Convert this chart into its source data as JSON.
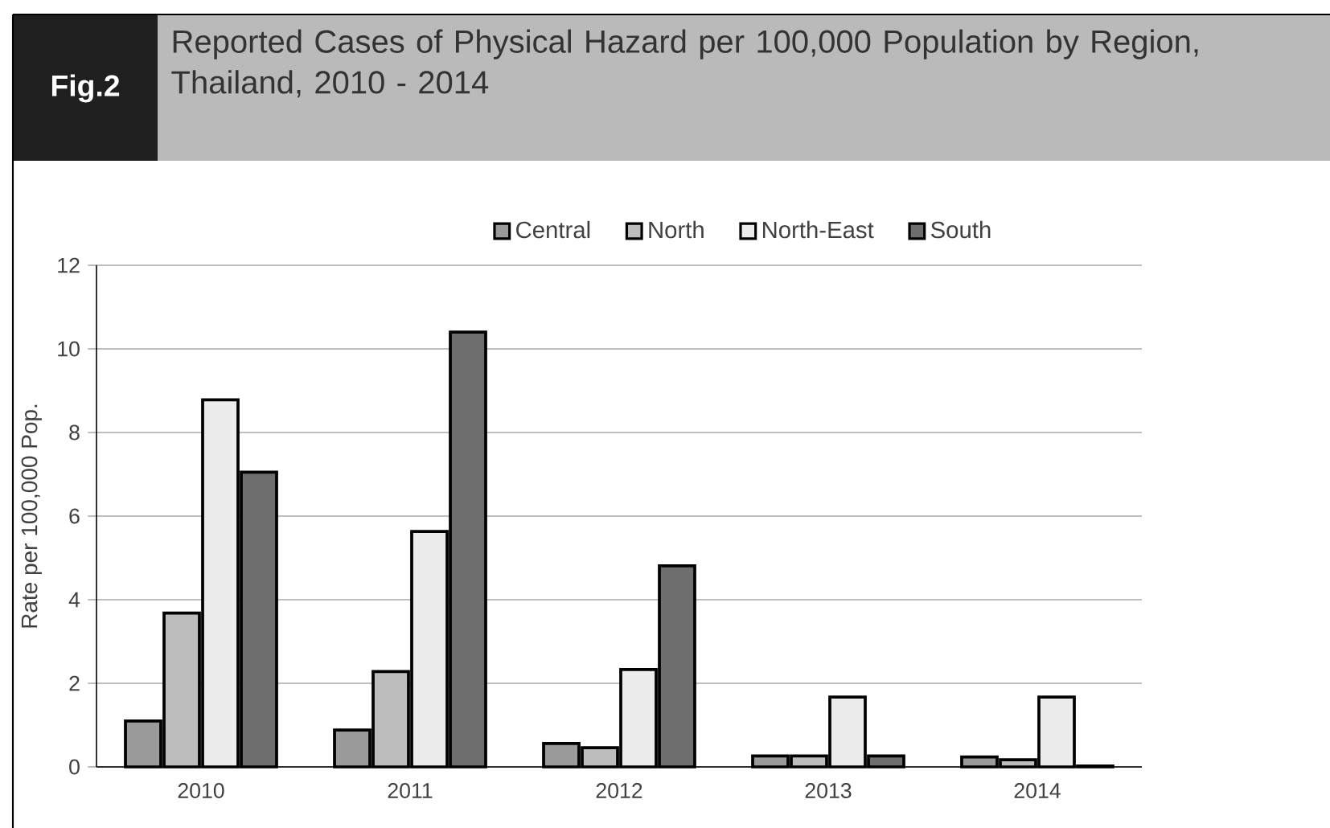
{
  "chart_data": {
    "type": "bar",
    "title": "Reported Cases of Physical Hazard per 100,000 Population  by Region, Thailand, 2010 - 2014",
    "annotations": [
      "Fig.2"
    ],
    "ylabel": "Rate per 100,000 Pop.",
    "categories": [
      "2010",
      "2011",
      "2012",
      "2013",
      "2014"
    ],
    "series": [
      {
        "name": "Central",
        "color": "#9a9a9a",
        "values": [
          1.1,
          0.88,
          0.56,
          0.26,
          0.24
        ]
      },
      {
        "name": "North",
        "color": "#bdbdbd",
        "values": [
          3.68,
          2.28,
          0.46,
          0.26,
          0.17
        ]
      },
      {
        "name": "North-East",
        "color": "#ececec",
        "values": [
          8.78,
          5.63,
          2.33,
          1.67,
          1.67
        ]
      },
      {
        "name": "South",
        "color": "#6e6e6e",
        "values": [
          7.05,
          10.4,
          4.81,
          0.26,
          0.02
        ]
      }
    ],
    "ylim": [
      0,
      12
    ],
    "yticks": [
      0,
      2,
      4,
      6,
      8,
      10,
      12
    ],
    "grid": "y",
    "legend": "top"
  }
}
